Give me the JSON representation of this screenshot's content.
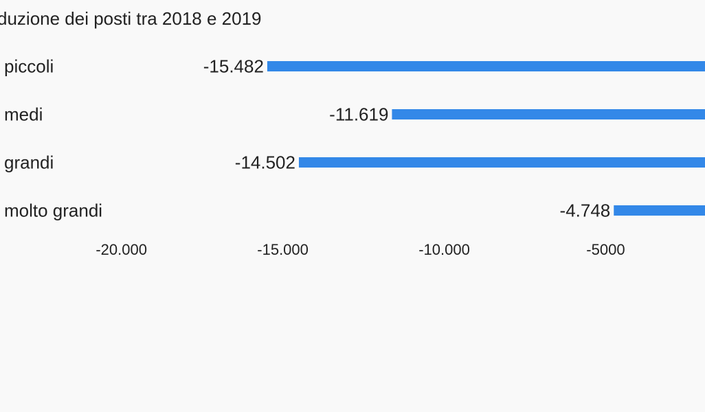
{
  "chart_data": {
    "type": "bar",
    "orientation": "horizontal",
    "title": "duzione dei posti tra 2018 e 2019",
    "categories": [
      "piccoli",
      "medi",
      "grandi",
      "molto grandi"
    ],
    "values": [
      -15482,
      -11619,
      -14502,
      -4748
    ],
    "value_labels": [
      "-15.482",
      "-11.619",
      "-14.502",
      "-4.748"
    ],
    "xticks": [
      -20000,
      -15000,
      -10000,
      -5000
    ],
    "xtick_labels": [
      "-20.000",
      "-15.000",
      "-10.000",
      "-5000"
    ],
    "xlim": [
      -23760,
      -1923
    ],
    "grid": false,
    "bar_color": "#3388e8"
  }
}
